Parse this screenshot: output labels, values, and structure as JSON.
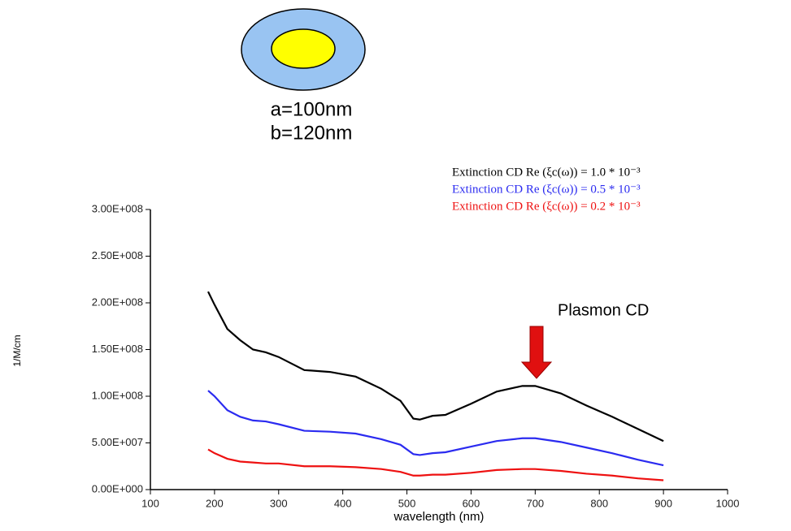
{
  "chart_data": {
    "type": "line",
    "annotation": "Plasmon CD",
    "inset_labels": [
      "a=100nm",
      "b=120nm"
    ],
    "x_label": "wavelength (nm)",
    "y_label": "1/M/cm",
    "x": [
      190,
      200,
      220,
      240,
      260,
      280,
      300,
      340,
      380,
      420,
      460,
      490,
      510,
      520,
      540,
      560,
      600,
      640,
      680,
      700,
      740,
      780,
      820,
      860,
      900
    ],
    "series": [
      {
        "name": "Extinction CD Re (ξc(ω)) = 1.0 * 10⁻³",
        "color": "#000000",
        "values": [
          212000000,
          198000000,
          172000000,
          160000000,
          150000000,
          147000000,
          142000000,
          128000000,
          126000000,
          121000000,
          108000000,
          95000000,
          76000000,
          75000000,
          79000000,
          80000000,
          92000000,
          105000000,
          111000000,
          111000000,
          103000000,
          90000000,
          78000000,
          65000000,
          52000000
        ]
      },
      {
        "name": "Extinction CD Re (ξc(ω)) = 0.5 * 10⁻³",
        "color": "#2b2bf0",
        "values": [
          106000000,
          100000000,
          85000000,
          78000000,
          74000000,
          73000000,
          70000000,
          63000000,
          62000000,
          60000000,
          54000000,
          48000000,
          38000000,
          37000000,
          39000000,
          40000000,
          46000000,
          52000000,
          55000000,
          55000000,
          51000000,
          45000000,
          39000000,
          32000000,
          26000000
        ]
      },
      {
        "name": "Extinction CD Re (ξc(ω)) = 0.2 * 10⁻³",
        "color": "#ee1111",
        "values": [
          43000000,
          39000000,
          33000000,
          30000000,
          29000000,
          28000000,
          28000000,
          25000000,
          25000000,
          24000000,
          22000000,
          19000000,
          15000000,
          15000000,
          16000000,
          16000000,
          18000000,
          21000000,
          22000000,
          22000000,
          20000000,
          17000000,
          15000000,
          12000000,
          10000000
        ]
      }
    ],
    "xlim": [
      100,
      1000
    ],
    "xticks": [
      100,
      200,
      300,
      400,
      500,
      600,
      700,
      800,
      900,
      1000
    ],
    "ylim": [
      0,
      300000000
    ],
    "yticks": [
      {
        "value": 0,
        "label": "0.00E+000"
      },
      {
        "value": 50000000,
        "label": "5.00E+007"
      },
      {
        "value": 100000000,
        "label": "1.00E+008"
      },
      {
        "value": 150000000,
        "label": "1.50E+008"
      },
      {
        "value": 200000000,
        "label": "2.00E+008"
      },
      {
        "value": 250000000,
        "label": "2.50E+008"
      },
      {
        "value": 300000000,
        "label": "3.00E+008"
      }
    ]
  }
}
